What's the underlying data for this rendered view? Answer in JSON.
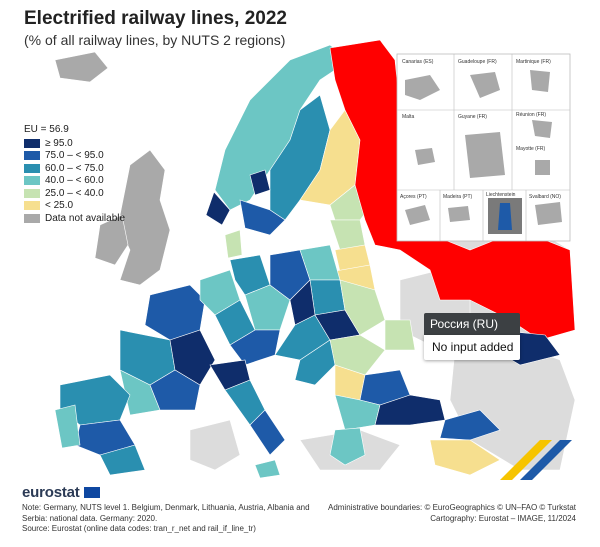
{
  "title": "Electrified railway lines, 2022",
  "subtitle": "(% of all railway lines, by NUTS 2 regions)",
  "legend": {
    "eu_label": "EU = 56.9",
    "classes": [
      {
        "label": "≥ 95.0",
        "color": "#0f2d6b"
      },
      {
        "label": "75.0 – < 95.0",
        "color": "#1e5aa8"
      },
      {
        "label": "60.0 – < 75.0",
        "color": "#2a8fb0"
      },
      {
        "label": "40.0 – < 60.0",
        "color": "#6cc6c4"
      },
      {
        "label": "25.0 – < 40.0",
        "color": "#c6e3b2"
      },
      {
        "label": "< 25.0",
        "color": "#f6df8f"
      },
      {
        "label": "Data not available",
        "color": "#a9a9a9"
      }
    ]
  },
  "tooltip": {
    "region": "Россия (RU)",
    "value": "No input added"
  },
  "highlight_color": "#ff0000",
  "insets": {
    "titles": [
      "Canarias (ES)",
      "Guadeloupe (FR)",
      "Martinique (FR)",
      "Réunion (FR)",
      "Malta",
      "Guyane (FR)",
      "Mayotte (FR)",
      "Açores (PT)",
      "Madeira (PT)",
      "Liechtenstein",
      "Svalbard (NO)"
    ]
  },
  "footer": {
    "brand": "eurostat",
    "note": "Note: Germany, NUTS level 1. Belgium, Denmark, Lithuania, Austria, Albania and Serbia: national data. Germany: 2020.",
    "source": "Source: Eurostat (online data codes: tran_r_net and rail_if_line_tr)",
    "boundaries": "Administrative boundaries: © EuroGeographics © UN–FAO © Turkstat",
    "cartography": "Cartography: Eurostat – IMAGE, 11/2024"
  }
}
